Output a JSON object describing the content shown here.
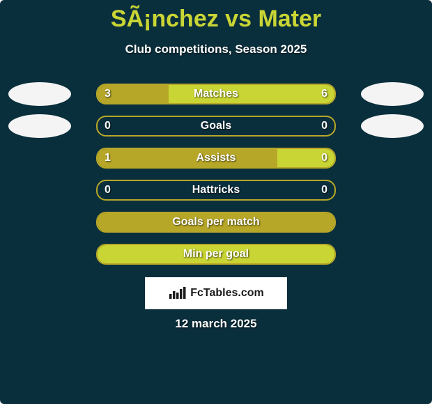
{
  "colors": {
    "background": "#0a2f3c",
    "text": "#ffffff",
    "title": "#c9d534",
    "barBorder": "#b7a728",
    "barLeft": "#b7a728",
    "barRight": "#c9d534",
    "avatar": "#f4f4f4"
  },
  "header": {
    "title": "SÃ¡nchez vs Mater",
    "subtitle": "Club competitions, Season 2025"
  },
  "rows": [
    {
      "label": "Matches",
      "left": "3",
      "right": "6",
      "leftW": 30,
      "rightW": 70,
      "showAvatars": true,
      "showVals": true
    },
    {
      "label": "Goals",
      "left": "0",
      "right": "0",
      "leftW": 0,
      "rightW": 0,
      "showAvatars": true,
      "showVals": true
    },
    {
      "label": "Assists",
      "left": "1",
      "right": "0",
      "leftW": 76,
      "rightW": 24,
      "showAvatars": false,
      "showVals": true
    },
    {
      "label": "Hattricks",
      "left": "0",
      "right": "0",
      "leftW": 0,
      "rightW": 0,
      "showAvatars": false,
      "showVals": true
    },
    {
      "label": "Goals per match",
      "left": "",
      "right": "",
      "leftW": 100,
      "rightW": 0,
      "showAvatars": false,
      "showVals": false
    },
    {
      "label": "Min per goal",
      "left": "",
      "right": "",
      "leftW": 0,
      "rightW": 100,
      "showAvatars": false,
      "showVals": false
    }
  ],
  "badge": {
    "text": "FcTables.com"
  },
  "date": "12 march 2025",
  "layout": {
    "rowTopStart": 0,
    "rowSpacing": 46
  }
}
